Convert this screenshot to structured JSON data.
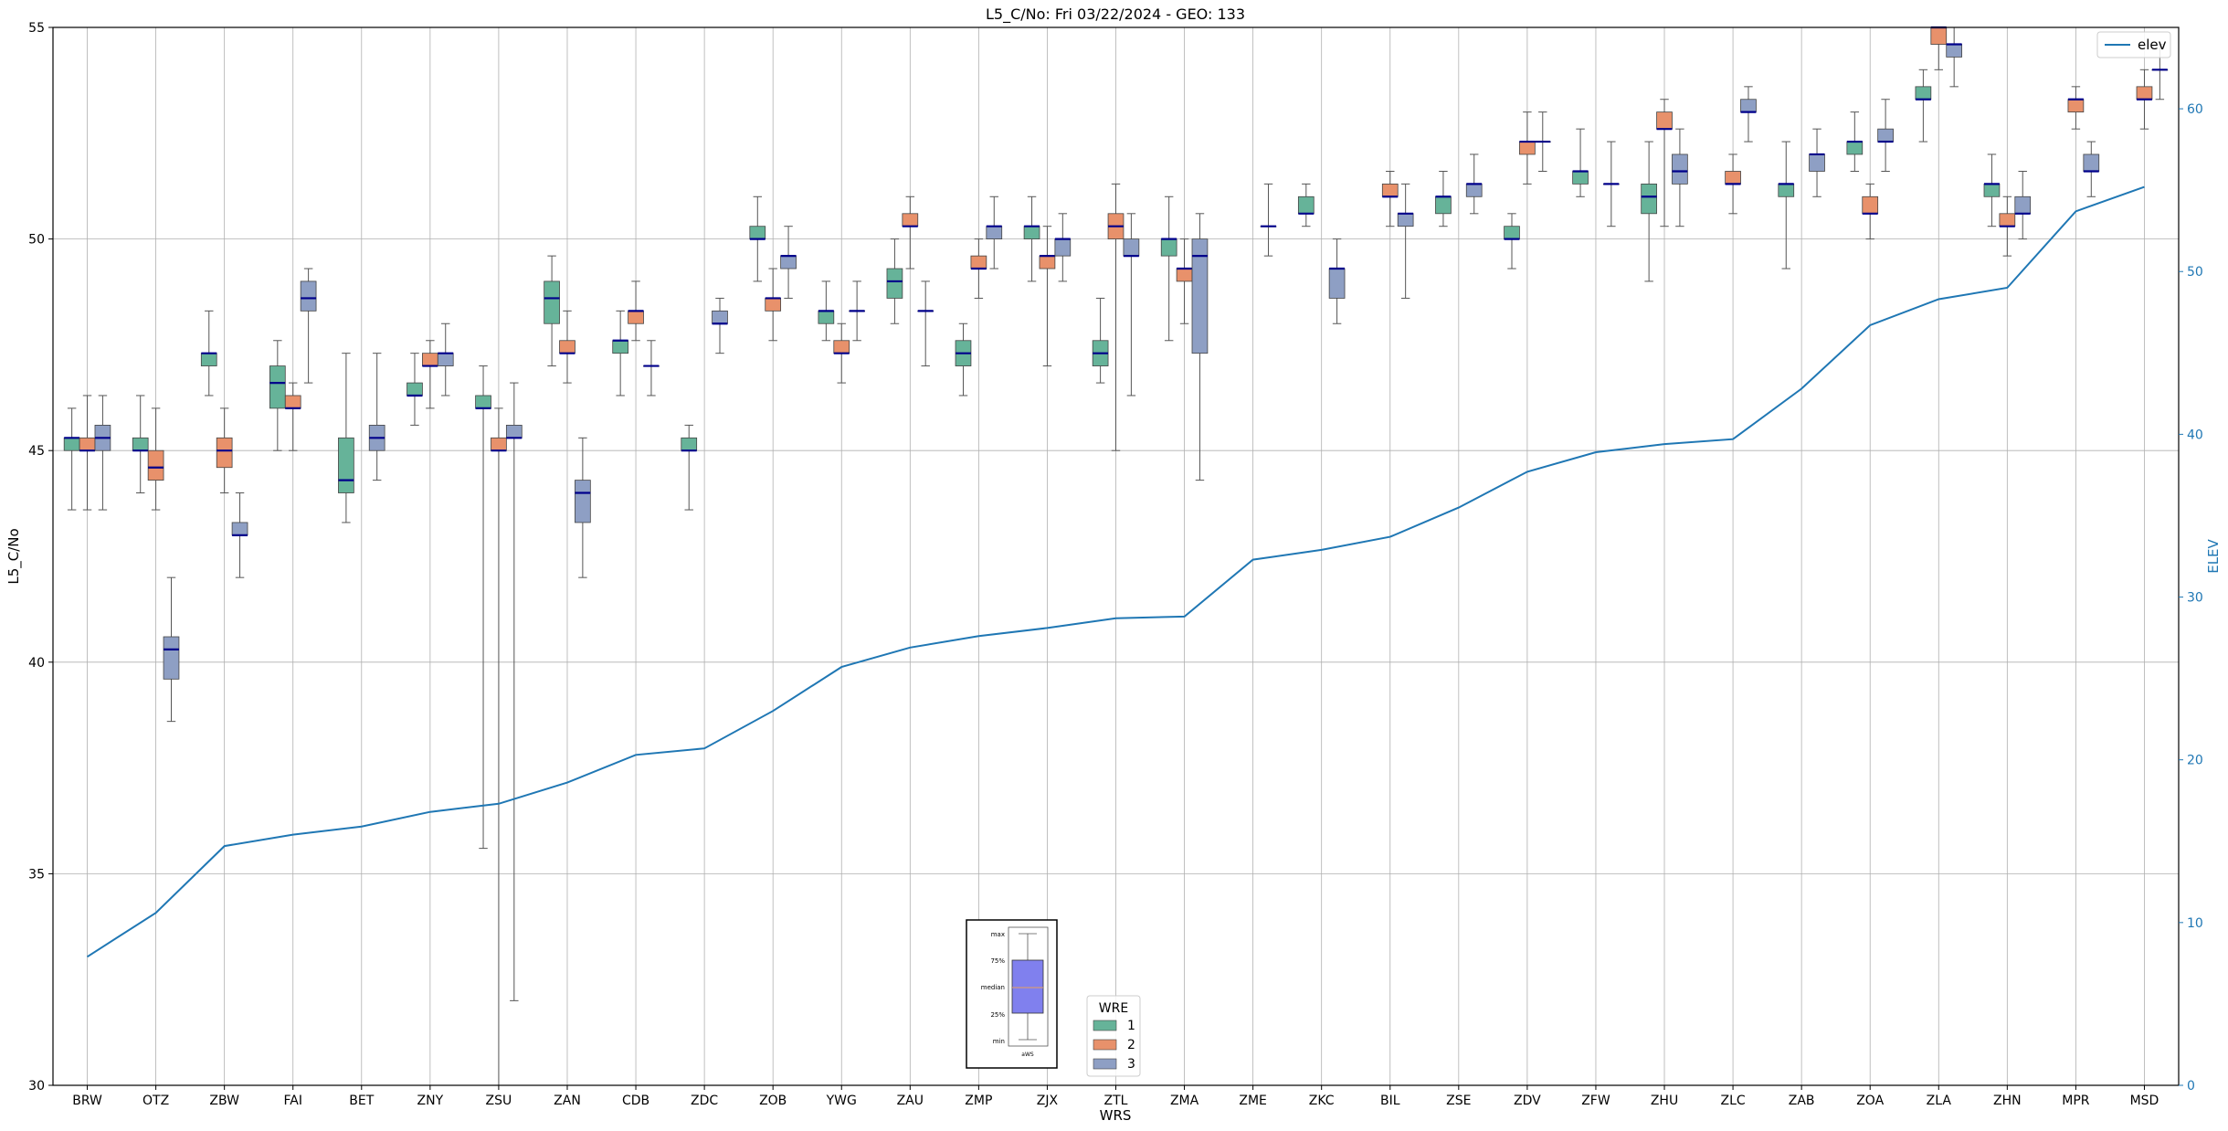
{
  "chart_data": {
    "type": "box",
    "title": "L5_C/No: Fri 03/22/2024 - GEO: 133",
    "xlabel": "WRS",
    "ylabel": "L5_C/No",
    "y2label": "ELEV",
    "ylim": [
      30,
      55
    ],
    "y2lim": [
      0,
      65
    ],
    "yticks": [
      30,
      35,
      40,
      45,
      50,
      55
    ],
    "y2ticks": [
      0,
      10,
      20,
      30,
      40,
      50,
      60
    ],
    "grid": true,
    "categories": [
      "BRW",
      "OTZ",
      "ZBW",
      "FAI",
      "BET",
      "ZNY",
      "ZSU",
      "ZAN",
      "CDB",
      "ZDC",
      "ZOB",
      "YWG",
      "ZAU",
      "ZMP",
      "ZJX",
      "ZTL",
      "ZMA",
      "ZME",
      "ZKC",
      "BIL",
      "ZSE",
      "ZDV",
      "ZFW",
      "ZHU",
      "ZLC",
      "ZAB",
      "ZOA",
      "ZLA",
      "ZHN",
      "MPR",
      "MSD"
    ],
    "legend": {
      "title": "WRE",
      "placement": "bottom-center",
      "entries": [
        {
          "label": "1",
          "color": "#66b399"
        },
        {
          "label": "2",
          "color": "#e8916b"
        },
        {
          "label": "3",
          "color": "#8e9fc4"
        }
      ]
    },
    "line_legend": {
      "label": "elev",
      "placement": "top-right",
      "color": "#1f77b4"
    },
    "inset_key": {
      "labels": [
        "max",
        "75%",
        "median",
        "25%",
        "min"
      ],
      "caption": "aWS",
      "color": "#8080ee"
    },
    "median_color": "#00008b",
    "series": [
      {
        "name": "1",
        "color": "#66b399",
        "boxes": [
          {
            "cat": "BRW",
            "min": 43.6,
            "q1": 45.0,
            "median": 45.3,
            "q3": 45.3,
            "max": 46.0
          },
          {
            "cat": "OTZ",
            "min": 44.0,
            "q1": 45.0,
            "median": 45.0,
            "q3": 45.3,
            "max": 46.3
          },
          {
            "cat": "ZBW",
            "min": 46.3,
            "q1": 47.0,
            "median": 47.3,
            "q3": 47.3,
            "max": 48.3
          },
          {
            "cat": "FAI",
            "min": 45.0,
            "q1": 46.0,
            "median": 46.6,
            "q3": 47.0,
            "max": 47.6
          },
          {
            "cat": "BET",
            "min": 43.3,
            "q1": 44.0,
            "median": 44.3,
            "q3": 45.3,
            "max": 47.3
          },
          {
            "cat": "ZNY",
            "min": 45.6,
            "q1": 46.3,
            "median": 46.3,
            "q3": 46.6,
            "max": 47.3
          },
          {
            "cat": "ZSU",
            "min": 35.6,
            "q1": 46.0,
            "median": 46.0,
            "q3": 46.3,
            "max": 47.0
          },
          {
            "cat": "ZAN",
            "min": 47.0,
            "q1": 48.0,
            "median": 48.6,
            "q3": 49.0,
            "max": 49.6
          },
          {
            "cat": "CDB",
            "min": 46.3,
            "q1": 47.3,
            "median": 47.6,
            "q3": 47.6,
            "max": 48.3
          },
          {
            "cat": "ZDC",
            "min": 43.6,
            "q1": 45.0,
            "median": 45.0,
            "q3": 45.3,
            "max": 45.6
          },
          {
            "cat": "ZOB",
            "min": 49.0,
            "q1": 50.0,
            "median": 50.0,
            "q3": 50.3,
            "max": 51.0
          },
          {
            "cat": "YWG",
            "min": 47.6,
            "q1": 48.0,
            "median": 48.3,
            "q3": 48.3,
            "max": 49.0
          },
          {
            "cat": "ZAU",
            "min": 48.0,
            "q1": 48.6,
            "median": 49.0,
            "q3": 49.3,
            "max": 50.0
          },
          {
            "cat": "ZMP",
            "min": 46.3,
            "q1": 47.0,
            "median": 47.3,
            "q3": 47.6,
            "max": 48.0
          },
          {
            "cat": "ZJX",
            "min": 49.0,
            "q1": 50.0,
            "median": 50.3,
            "q3": 50.3,
            "max": 51.0
          },
          {
            "cat": "ZTL",
            "min": 46.6,
            "q1": 47.0,
            "median": 47.3,
            "q3": 47.6,
            "max": 48.6
          },
          {
            "cat": "ZMA",
            "min": 47.6,
            "q1": 49.6,
            "median": 50.0,
            "q3": 50.0,
            "max": 51.0
          },
          {
            "cat": "ZKC",
            "min": 50.3,
            "q1": 50.6,
            "median": 50.6,
            "q3": 51.0,
            "max": 51.3
          },
          {
            "cat": "ZSE",
            "min": 50.3,
            "q1": 50.6,
            "median": 51.0,
            "q3": 51.0,
            "max": 51.6
          },
          {
            "cat": "ZDV",
            "min": 49.3,
            "q1": 50.0,
            "median": 50.0,
            "q3": 50.3,
            "max": 50.6
          },
          {
            "cat": "ZFW",
            "min": 51.0,
            "q1": 51.3,
            "median": 51.6,
            "q3": 51.6,
            "max": 52.6
          },
          {
            "cat": "ZHU",
            "min": 49.0,
            "q1": 50.6,
            "median": 51.0,
            "q3": 51.3,
            "max": 52.3
          },
          {
            "cat": "ZAB",
            "min": 49.3,
            "q1": 51.0,
            "median": 51.3,
            "q3": 51.3,
            "max": 52.3
          },
          {
            "cat": "ZOA",
            "min": 51.6,
            "q1": 52.0,
            "median": 52.3,
            "q3": 52.3,
            "max": 53.0
          },
          {
            "cat": "ZLA",
            "min": 52.3,
            "q1": 53.3,
            "median": 53.3,
            "q3": 53.6,
            "max": 54.0
          },
          {
            "cat": "ZHN",
            "min": 50.3,
            "q1": 51.0,
            "median": 51.3,
            "q3": 51.3,
            "max": 52.0
          }
        ]
      },
      {
        "name": "2",
        "color": "#e8916b",
        "boxes": [
          {
            "cat": "BRW",
            "min": 43.6,
            "q1": 45.0,
            "median": 45.0,
            "q3": 45.3,
            "max": 46.3
          },
          {
            "cat": "OTZ",
            "min": 43.6,
            "q1": 44.3,
            "median": 44.6,
            "q3": 45.0,
            "max": 46.0
          },
          {
            "cat": "ZBW",
            "min": 44.0,
            "q1": 44.6,
            "median": 45.0,
            "q3": 45.3,
            "max": 46.0
          },
          {
            "cat": "FAI",
            "min": 45.0,
            "q1": 46.0,
            "median": 46.0,
            "q3": 46.3,
            "max": 46.6
          },
          {
            "cat": "ZNY",
            "min": 46.0,
            "q1": 47.0,
            "median": 47.0,
            "q3": 47.3,
            "max": 47.6
          },
          {
            "cat": "ZSU",
            "min": 30.0,
            "q1": 45.0,
            "median": 45.0,
            "q3": 45.3,
            "max": 46.0
          },
          {
            "cat": "ZAN",
            "min": 46.6,
            "q1": 47.3,
            "median": 47.3,
            "q3": 47.6,
            "max": 48.3
          },
          {
            "cat": "CDB",
            "min": 47.6,
            "q1": 48.0,
            "median": 48.3,
            "q3": 48.3,
            "max": 49.0
          },
          {
            "cat": "ZOB",
            "min": 47.6,
            "q1": 48.3,
            "median": 48.6,
            "q3": 48.6,
            "max": 49.3
          },
          {
            "cat": "YWG",
            "min": 46.6,
            "q1": 47.3,
            "median": 47.3,
            "q3": 47.6,
            "max": 48.0
          },
          {
            "cat": "ZAU",
            "min": 49.3,
            "q1": 50.3,
            "median": 50.3,
            "q3": 50.6,
            "max": 51.0
          },
          {
            "cat": "ZMP",
            "min": 48.6,
            "q1": 49.3,
            "median": 49.3,
            "q3": 49.6,
            "max": 50.0
          },
          {
            "cat": "ZJX",
            "min": 47.0,
            "q1": 49.3,
            "median": 49.6,
            "q3": 49.6,
            "max": 50.3
          },
          {
            "cat": "ZTL",
            "min": 45.0,
            "q1": 50.0,
            "median": 50.3,
            "q3": 50.6,
            "max": 51.3
          },
          {
            "cat": "ZMA",
            "min": 48.0,
            "q1": 49.0,
            "median": 49.3,
            "q3": 49.3,
            "max": 50.0
          },
          {
            "cat": "BIL",
            "min": 50.3,
            "q1": 51.0,
            "median": 51.0,
            "q3": 51.3,
            "max": 51.6
          },
          {
            "cat": "ZDV",
            "min": 51.3,
            "q1": 52.0,
            "median": 52.3,
            "q3": 52.3,
            "max": 53.0
          },
          {
            "cat": "ZHU",
            "min": 50.3,
            "q1": 52.6,
            "median": 52.6,
            "q3": 53.0,
            "max": 53.3
          },
          {
            "cat": "ZLC",
            "min": 50.6,
            "q1": 51.3,
            "median": 51.3,
            "q3": 51.6,
            "max": 52.0
          },
          {
            "cat": "ZOA",
            "min": 50.0,
            "q1": 50.6,
            "median": 50.6,
            "q3": 51.0,
            "max": 51.3
          },
          {
            "cat": "ZLA",
            "min": 54.0,
            "q1": 54.6,
            "median": 55.0,
            "q3": 55.0,
            "max": 55.0
          },
          {
            "cat": "ZHN",
            "min": 49.6,
            "q1": 50.3,
            "median": 50.3,
            "q3": 50.6,
            "max": 51.0
          },
          {
            "cat": "MPR",
            "min": 52.6,
            "q1": 53.0,
            "median": 53.3,
            "q3": 53.3,
            "max": 53.6
          },
          {
            "cat": "MSD",
            "min": 52.6,
            "q1": 53.3,
            "median": 53.3,
            "q3": 53.6,
            "max": 54.0
          }
        ]
      },
      {
        "name": "3",
        "color": "#8e9fc4",
        "boxes": [
          {
            "cat": "BRW",
            "min": 43.6,
            "q1": 45.0,
            "median": 45.3,
            "q3": 45.6,
            "max": 46.3
          },
          {
            "cat": "OTZ",
            "min": 38.6,
            "q1": 39.6,
            "median": 40.3,
            "q3": 40.6,
            "max": 42.0
          },
          {
            "cat": "ZBW",
            "min": 42.0,
            "q1": 43.0,
            "median": 43.0,
            "q3": 43.3,
            "max": 44.0
          },
          {
            "cat": "FAI",
            "min": 46.6,
            "q1": 48.3,
            "median": 48.6,
            "q3": 49.0,
            "max": 49.3
          },
          {
            "cat": "BET",
            "min": 44.3,
            "q1": 45.0,
            "median": 45.3,
            "q3": 45.6,
            "max": 47.3
          },
          {
            "cat": "ZNY",
            "min": 46.3,
            "q1": 47.0,
            "median": 47.3,
            "q3": 47.3,
            "max": 48.0
          },
          {
            "cat": "ZSU",
            "min": 32.0,
            "q1": 45.3,
            "median": 45.3,
            "q3": 45.6,
            "max": 46.6
          },
          {
            "cat": "ZAN",
            "min": 42.0,
            "q1": 43.3,
            "median": 44.0,
            "q3": 44.3,
            "max": 45.3
          },
          {
            "cat": "CDB",
            "min": 46.3,
            "q1": 47.0,
            "median": 47.0,
            "q3": 47.0,
            "max": 47.6
          },
          {
            "cat": "ZDC",
            "min": 47.3,
            "q1": 48.0,
            "median": 48.0,
            "q3": 48.3,
            "max": 48.6
          },
          {
            "cat": "ZOB",
            "min": 48.6,
            "q1": 49.3,
            "median": 49.6,
            "q3": 49.6,
            "max": 50.3
          },
          {
            "cat": "YWG",
            "min": 47.6,
            "q1": 48.3,
            "median": 48.3,
            "q3": 48.3,
            "max": 49.0
          },
          {
            "cat": "ZAU",
            "min": 47.0,
            "q1": 48.3,
            "median": 48.3,
            "q3": 48.3,
            "max": 49.0
          },
          {
            "cat": "ZMP",
            "min": 49.3,
            "q1": 50.0,
            "median": 50.3,
            "q3": 50.3,
            "max": 51.0
          },
          {
            "cat": "ZJX",
            "min": 49.0,
            "q1": 49.6,
            "median": 50.0,
            "q3": 50.0,
            "max": 50.6
          },
          {
            "cat": "ZTL",
            "min": 46.3,
            "q1": 49.6,
            "median": 49.6,
            "q3": 50.0,
            "max": 50.6
          },
          {
            "cat": "ZMA",
            "min": 44.3,
            "q1": 47.3,
            "median": 49.6,
            "q3": 50.0,
            "max": 50.6
          },
          {
            "cat": "ZME",
            "min": 49.6,
            "q1": 50.3,
            "median": 50.3,
            "q3": 50.3,
            "max": 51.3
          },
          {
            "cat": "ZKC",
            "min": 48.0,
            "q1": 48.6,
            "median": 49.3,
            "q3": 49.3,
            "max": 50.0
          },
          {
            "cat": "BIL",
            "min": 48.6,
            "q1": 50.3,
            "median": 50.6,
            "q3": 50.6,
            "max": 51.3
          },
          {
            "cat": "ZSE",
            "min": 50.6,
            "q1": 51.0,
            "median": 51.3,
            "q3": 51.3,
            "max": 52.0
          },
          {
            "cat": "ZDV",
            "min": 51.6,
            "q1": 52.3,
            "median": 52.3,
            "q3": 52.3,
            "max": 53.0
          },
          {
            "cat": "ZFW",
            "min": 50.3,
            "q1": 51.3,
            "median": 51.3,
            "q3": 51.3,
            "max": 52.3
          },
          {
            "cat": "ZHU",
            "min": 50.3,
            "q1": 51.3,
            "median": 51.6,
            "q3": 52.0,
            "max": 52.6
          },
          {
            "cat": "ZLC",
            "min": 52.3,
            "q1": 53.0,
            "median": 53.0,
            "q3": 53.3,
            "max": 53.6
          },
          {
            "cat": "ZAB",
            "min": 51.0,
            "q1": 51.6,
            "median": 52.0,
            "q3": 52.0,
            "max": 52.6
          },
          {
            "cat": "ZOA",
            "min": 51.6,
            "q1": 52.3,
            "median": 52.3,
            "q3": 52.6,
            "max": 53.3
          },
          {
            "cat": "ZLA",
            "min": 53.6,
            "q1": 54.3,
            "median": 54.6,
            "q3": 54.6,
            "max": 55.0
          },
          {
            "cat": "ZHN",
            "min": 50.0,
            "q1": 50.6,
            "median": 50.6,
            "q3": 51.0,
            "max": 51.6
          },
          {
            "cat": "MPR",
            "min": 51.0,
            "q1": 51.6,
            "median": 51.6,
            "q3": 52.0,
            "max": 52.3
          },
          {
            "cat": "MSD",
            "min": 53.3,
            "q1": 54.0,
            "median": 54.0,
            "q3": 54.0,
            "max": 54.6
          }
        ]
      },
      {
        "name": "elev",
        "type": "line",
        "axis": "right",
        "color": "#1f77b4",
        "values": [
          7.9,
          10.6,
          14.7,
          15.4,
          15.9,
          16.8,
          17.3,
          18.6,
          20.3,
          20.7,
          23.0,
          25.7,
          26.9,
          27.6,
          28.1,
          28.7,
          28.8,
          32.3,
          32.9,
          33.7,
          35.5,
          37.7,
          38.9,
          39.4,
          39.7,
          42.8,
          46.7,
          48.3,
          49.0,
          53.7,
          55.2
        ]
      }
    ]
  }
}
